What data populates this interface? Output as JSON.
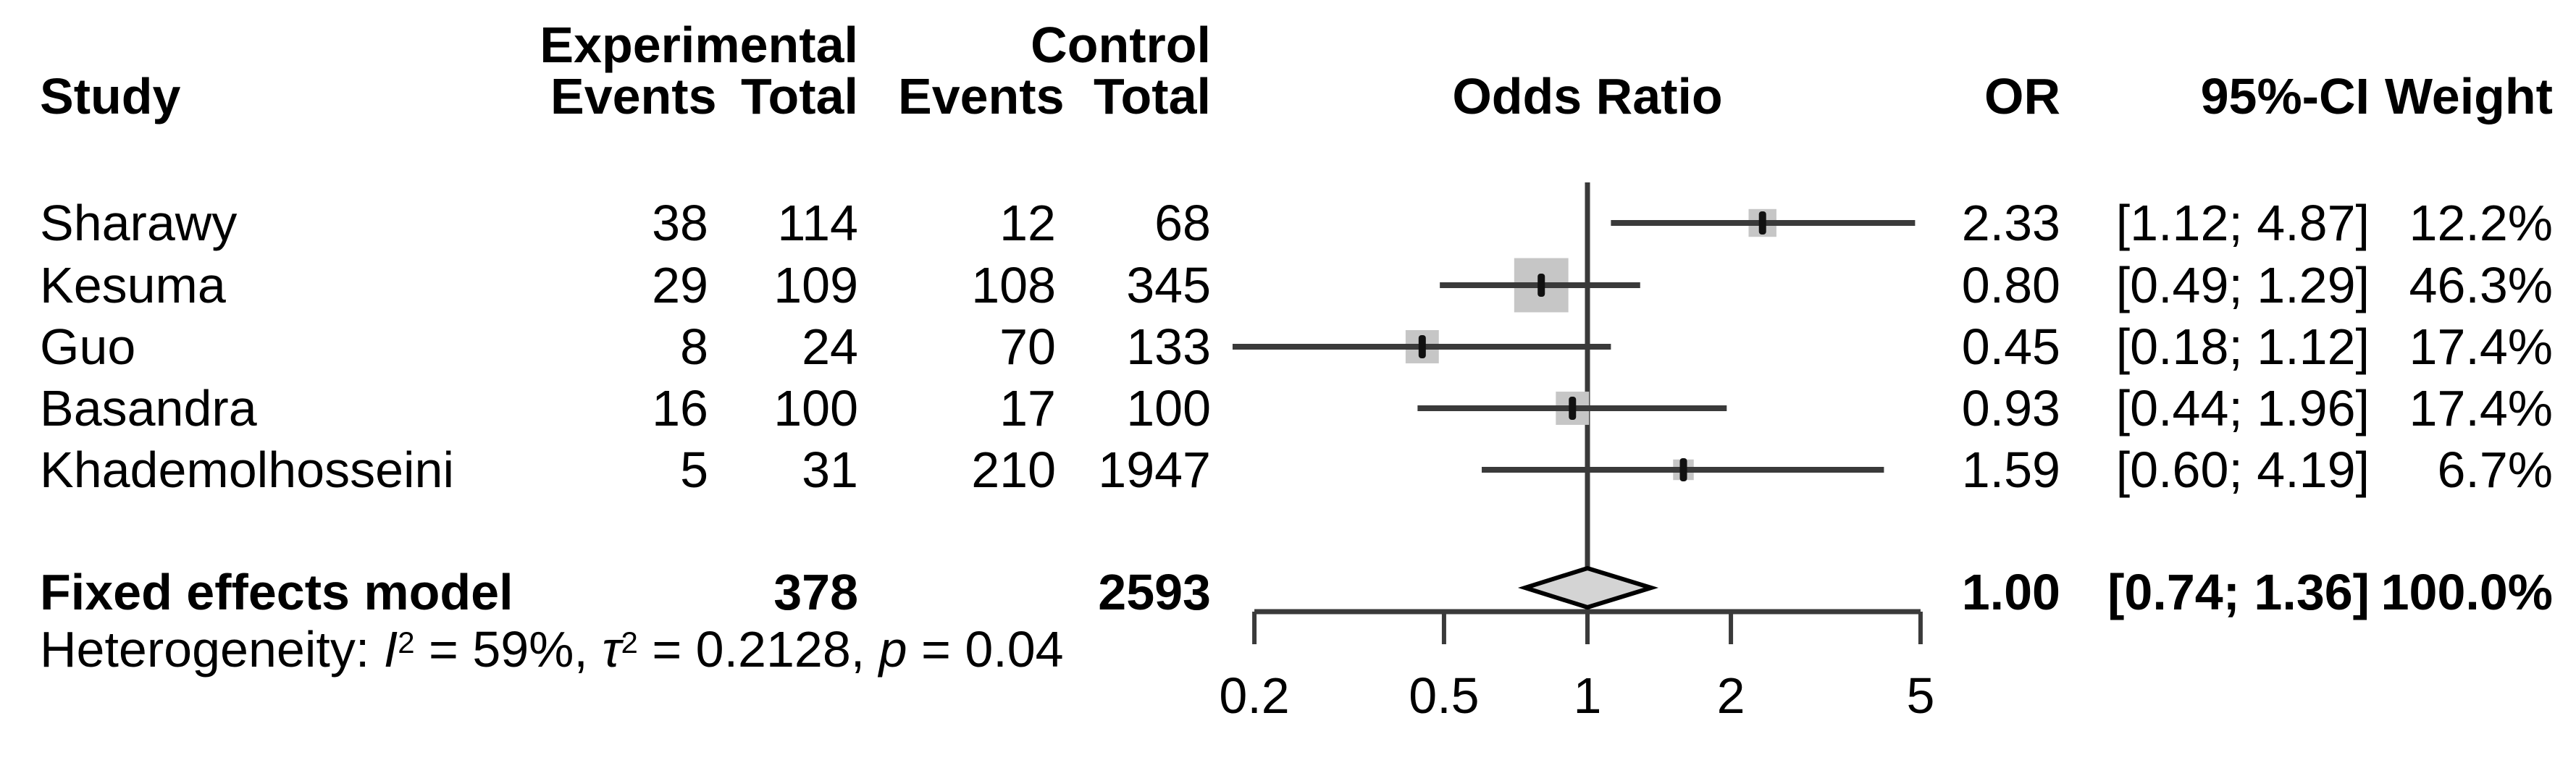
{
  "figure": {
    "background": "#ffffff",
    "text_color": "#000000"
  },
  "chart_data": {
    "type": "forest",
    "effect_measure": "Odds Ratio",
    "scale": "log",
    "columns": {
      "study": "Study",
      "group_experimental": "Experimental",
      "group_control": "Control",
      "exp_events": "Events",
      "exp_total": "Total",
      "ctrl_events": "Events",
      "ctrl_total": "Total",
      "plot_header": "Odds Ratio",
      "or": "OR",
      "ci": "95%-CI",
      "weight": "Weight"
    },
    "studies": [
      {
        "name": "Sharawy",
        "exp_events": "38",
        "exp_total": "114",
        "ctrl_events": "12",
        "ctrl_total": "68",
        "or": 2.33,
        "ci_low": 1.12,
        "ci_high": 4.87,
        "or_label": "2.33",
        "ci_label": "[1.12; 4.87]",
        "weight_pct": 12.2,
        "weight_label": "12.2%"
      },
      {
        "name": "Kesuma",
        "exp_events": "29",
        "exp_total": "109",
        "ctrl_events": "108",
        "ctrl_total": "345",
        "or": 0.8,
        "ci_low": 0.49,
        "ci_high": 1.29,
        "or_label": "0.80",
        "ci_label": "[0.49; 1.29]",
        "weight_pct": 46.3,
        "weight_label": "46.3%"
      },
      {
        "name": "Guo",
        "exp_events": "8",
        "exp_total": "24",
        "ctrl_events": "70",
        "ctrl_total": "133",
        "or": 0.45,
        "ci_low": 0.18,
        "ci_high": 1.12,
        "or_label": "0.45",
        "ci_label": "[0.18; 1.12]",
        "weight_pct": 17.4,
        "weight_label": "17.4%"
      },
      {
        "name": "Basandra",
        "exp_events": "16",
        "exp_total": "100",
        "ctrl_events": "17",
        "ctrl_total": "100",
        "or": 0.93,
        "ci_low": 0.44,
        "ci_high": 1.96,
        "or_label": "0.93",
        "ci_label": "[0.44; 1.96]",
        "weight_pct": 17.4,
        "weight_label": "17.4%"
      },
      {
        "name": "Khademolhosseini",
        "exp_events": "5",
        "exp_total": "31",
        "ctrl_events": "210",
        "ctrl_total": "1947",
        "or": 1.59,
        "ci_low": 0.6,
        "ci_high": 4.19,
        "or_label": "1.59",
        "ci_label": "[0.60; 4.19]",
        "weight_pct": 6.7,
        "weight_label": "6.7%"
      }
    ],
    "summary": {
      "label": "Fixed effects model",
      "exp_total": "378",
      "ctrl_total": "2593",
      "or": 1.0,
      "ci_low": 0.74,
      "ci_high": 1.36,
      "or_label": "1.00",
      "ci_label": "[0.74; 1.36]",
      "weight_label": "100.0%"
    },
    "heterogeneity_segments": [
      {
        "text": "Heterogeneity: "
      },
      {
        "text": "I",
        "italic": true
      },
      {
        "text": "2",
        "sup": true
      },
      {
        "text": " = 59%, "
      },
      {
        "text": "τ",
        "italic": true
      },
      {
        "text": "2",
        "sup": true
      },
      {
        "text": " = 0.2128, "
      },
      {
        "text": "p",
        "italic": true
      },
      {
        "text": " = 0.04"
      }
    ],
    "axis": {
      "ticks": [
        0.2,
        0.5,
        1,
        2,
        5
      ],
      "tick_labels": [
        "0.2",
        "0.5",
        "1",
        "2",
        "5"
      ],
      "ref_line": 1,
      "xlim_low": 0.2,
      "xlim_high": 5
    },
    "colors": {
      "square": "#c6c6c6",
      "ci_line": "#3a3a3a",
      "ref_line": "#3a3a3a",
      "axis": "#3a3a3a",
      "diamond_fill": "#d4d4d4",
      "diamond_stroke": "#000000",
      "marker": "#111111",
      "text": "#000000"
    }
  }
}
